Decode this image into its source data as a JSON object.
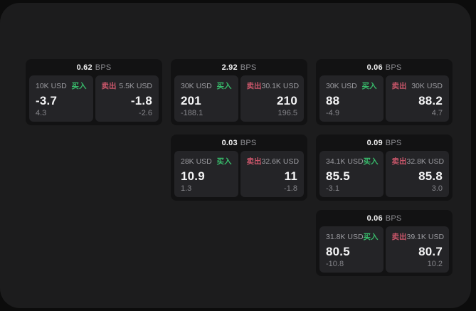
{
  "labels": {
    "buy": "买入",
    "sell": "卖出",
    "bps_unit": "BPS"
  },
  "colors": {
    "buy_green": "#38bb6b",
    "sell_red": "#c9566a",
    "surface": "#1c1c1d",
    "card": "#121213",
    "panel": "#242427"
  },
  "cards": [
    {
      "bps": "0.62",
      "buy": {
        "amount": "10K USD",
        "price": "-3.7",
        "delta": "4.3"
      },
      "sell": {
        "amount": "5.5K USD",
        "price": "-1.8",
        "delta": "-2.6"
      },
      "grid": {
        "row": 1,
        "col": 1
      }
    },
    {
      "bps": "2.92",
      "buy": {
        "amount": "30K USD",
        "price": "201",
        "delta": "-188.1"
      },
      "sell": {
        "amount": "30.1K USD",
        "price": "210",
        "delta": "196.5"
      },
      "grid": {
        "row": 1,
        "col": 2
      }
    },
    {
      "bps": "0.06",
      "buy": {
        "amount": "30K USD",
        "price": "88",
        "delta": "-4.9"
      },
      "sell": {
        "amount": "30K USD",
        "price": "88.2",
        "delta": "4.7"
      },
      "grid": {
        "row": 1,
        "col": 3
      }
    },
    {
      "bps": "0.03",
      "buy": {
        "amount": "28K USD",
        "price": "10.9",
        "delta": "1.3"
      },
      "sell": {
        "amount": "32.6K USD",
        "price": "11",
        "delta": "-1.8"
      },
      "grid": {
        "row": 2,
        "col": 2
      }
    },
    {
      "bps": "0.09",
      "buy": {
        "amount": "34.1K USD",
        "price": "85.5",
        "delta": "-3.1"
      },
      "sell": {
        "amount": "32.8K USD",
        "price": "85.8",
        "delta": "3.0"
      },
      "grid": {
        "row": 2,
        "col": 3
      }
    },
    {
      "bps": "0.06",
      "buy": {
        "amount": "31.8K USD",
        "price": "80.5",
        "delta": "-10.8"
      },
      "sell": {
        "amount": "39.1K USD",
        "price": "80.7",
        "delta": "10.2"
      },
      "grid": {
        "row": 3,
        "col": 3
      }
    }
  ]
}
